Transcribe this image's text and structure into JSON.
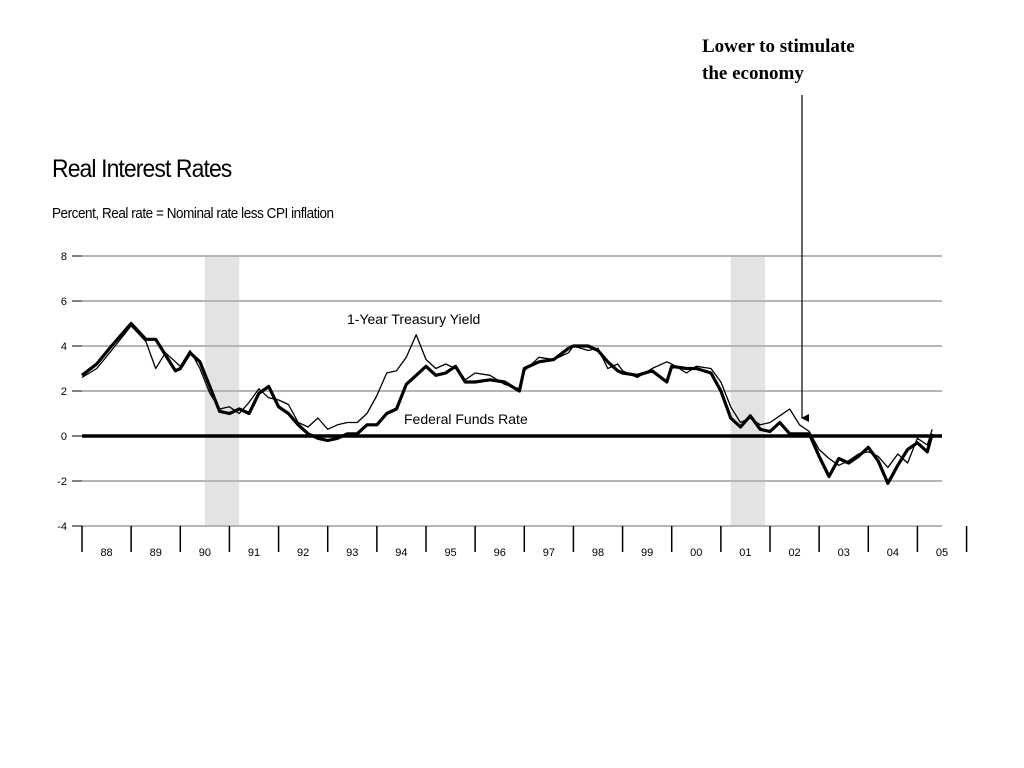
{
  "annotation": {
    "line1": "Lower to stimulate",
    "line2": "the economy"
  },
  "chart_data": {
    "type": "line",
    "title": "Real Interest Rates",
    "subtitle": "Percent, Real rate = Nominal rate less CPI inflation",
    "xlabel": "",
    "ylabel": "",
    "ylim": [
      -4,
      8
    ],
    "yticks": [
      "8",
      "6",
      "4",
      "2",
      "0",
      "-2",
      "-4"
    ],
    "xticks": [
      "88",
      "89",
      "90",
      "91",
      "92",
      "93",
      "94",
      "95",
      "96",
      "97",
      "98",
      "99",
      "00",
      "01",
      "02",
      "03",
      "04",
      "05"
    ],
    "grid": true,
    "recession_shading": [
      {
        "from": 1990.5,
        "to": 1991.2
      },
      {
        "from": 2001.2,
        "to": 2001.9
      }
    ],
    "series": [
      {
        "name": "1-Year Treasury Yield",
        "points": [
          [
            1988.0,
            2.6
          ],
          [
            1988.3,
            3.0
          ],
          [
            1988.6,
            3.8
          ],
          [
            1989.0,
            4.9
          ],
          [
            1989.3,
            4.2
          ],
          [
            1989.5,
            3.0
          ],
          [
            1989.7,
            3.7
          ],
          [
            1989.9,
            3.3
          ],
          [
            1990.0,
            3.1
          ],
          [
            1990.2,
            3.8
          ],
          [
            1990.4,
            3.0
          ],
          [
            1990.6,
            1.9
          ],
          [
            1990.8,
            1.2
          ],
          [
            1991.0,
            1.3
          ],
          [
            1991.2,
            1.0
          ],
          [
            1991.4,
            1.5
          ],
          [
            1991.6,
            2.1
          ],
          [
            1991.8,
            1.7
          ],
          [
            1992.0,
            1.6
          ],
          [
            1992.2,
            1.4
          ],
          [
            1992.4,
            0.6
          ],
          [
            1992.6,
            0.4
          ],
          [
            1992.8,
            0.8
          ],
          [
            1993.0,
            0.3
          ],
          [
            1993.2,
            0.5
          ],
          [
            1993.4,
            0.6
          ],
          [
            1993.6,
            0.6
          ],
          [
            1993.8,
            1.0
          ],
          [
            1994.0,
            1.8
          ],
          [
            1994.2,
            2.8
          ],
          [
            1994.4,
            2.9
          ],
          [
            1994.6,
            3.5
          ],
          [
            1994.8,
            4.5
          ],
          [
            1995.0,
            3.4
          ],
          [
            1995.2,
            3.0
          ],
          [
            1995.4,
            3.2
          ],
          [
            1995.6,
            3.0
          ],
          [
            1995.8,
            2.5
          ],
          [
            1996.0,
            2.8
          ],
          [
            1996.3,
            2.7
          ],
          [
            1996.6,
            2.3
          ],
          [
            1996.9,
            2.1
          ],
          [
            1997.0,
            2.9
          ],
          [
            1997.3,
            3.5
          ],
          [
            1997.6,
            3.4
          ],
          [
            1997.9,
            3.7
          ],
          [
            1998.0,
            4.0
          ],
          [
            1998.3,
            3.8
          ],
          [
            1998.5,
            3.9
          ],
          [
            1998.7,
            3.0
          ],
          [
            1998.9,
            3.2
          ],
          [
            1999.0,
            2.9
          ],
          [
            1999.3,
            2.6
          ],
          [
            1999.6,
            3.0
          ],
          [
            1999.9,
            3.3
          ],
          [
            2000.0,
            3.2
          ],
          [
            2000.3,
            2.8
          ],
          [
            2000.5,
            3.1
          ],
          [
            2000.8,
            3.0
          ],
          [
            2001.0,
            2.4
          ],
          [
            2001.2,
            1.3
          ],
          [
            2001.4,
            0.6
          ],
          [
            2001.6,
            0.8
          ],
          [
            2001.8,
            0.5
          ],
          [
            2002.0,
            0.6
          ],
          [
            2002.2,
            0.9
          ],
          [
            2002.4,
            1.2
          ],
          [
            2002.6,
            0.5
          ],
          [
            2002.8,
            0.2
          ],
          [
            2003.0,
            -0.6
          ],
          [
            2003.2,
            -1.0
          ],
          [
            2003.4,
            -1.3
          ],
          [
            2003.6,
            -1.1
          ],
          [
            2003.8,
            -0.8
          ],
          [
            2004.0,
            -0.7
          ],
          [
            2004.2,
            -0.9
          ],
          [
            2004.4,
            -1.4
          ],
          [
            2004.6,
            -0.8
          ],
          [
            2004.8,
            -1.2
          ],
          [
            2005.0,
            -0.1
          ],
          [
            2005.2,
            -0.4
          ],
          [
            2005.3,
            0.3
          ]
        ]
      },
      {
        "name": "Federal Funds Rate",
        "points": [
          [
            1988.0,
            2.7
          ],
          [
            1988.3,
            3.2
          ],
          [
            1988.6,
            4.0
          ],
          [
            1989.0,
            5.0
          ],
          [
            1989.3,
            4.3
          ],
          [
            1989.5,
            4.3
          ],
          [
            1989.7,
            3.6
          ],
          [
            1989.9,
            2.9
          ],
          [
            1990.0,
            3.0
          ],
          [
            1990.2,
            3.7
          ],
          [
            1990.4,
            3.3
          ],
          [
            1990.6,
            2.2
          ],
          [
            1990.8,
            1.1
          ],
          [
            1991.0,
            1.0
          ],
          [
            1991.2,
            1.2
          ],
          [
            1991.4,
            1.0
          ],
          [
            1991.6,
            1.9
          ],
          [
            1991.8,
            2.2
          ],
          [
            1992.0,
            1.3
          ],
          [
            1992.2,
            1.0
          ],
          [
            1992.4,
            0.5
          ],
          [
            1992.6,
            0.1
          ],
          [
            1992.8,
            -0.1
          ],
          [
            1993.0,
            -0.2
          ],
          [
            1993.2,
            -0.1
          ],
          [
            1993.4,
            0.1
          ],
          [
            1993.6,
            0.1
          ],
          [
            1993.8,
            0.5
          ],
          [
            1994.0,
            0.5
          ],
          [
            1994.2,
            1.0
          ],
          [
            1994.4,
            1.2
          ],
          [
            1994.6,
            2.3
          ],
          [
            1994.8,
            2.7
          ],
          [
            1995.0,
            3.1
          ],
          [
            1995.2,
            2.7
          ],
          [
            1995.4,
            2.8
          ],
          [
            1995.6,
            3.1
          ],
          [
            1995.8,
            2.4
          ],
          [
            1996.0,
            2.4
          ],
          [
            1996.3,
            2.5
          ],
          [
            1996.6,
            2.4
          ],
          [
            1996.9,
            2.0
          ],
          [
            1997.0,
            3.0
          ],
          [
            1997.3,
            3.3
          ],
          [
            1997.6,
            3.4
          ],
          [
            1997.9,
            3.9
          ],
          [
            1998.0,
            4.0
          ],
          [
            1998.3,
            4.0
          ],
          [
            1998.5,
            3.8
          ],
          [
            1998.7,
            3.3
          ],
          [
            1998.9,
            2.9
          ],
          [
            1999.0,
            2.8
          ],
          [
            1999.3,
            2.7
          ],
          [
            1999.6,
            2.9
          ],
          [
            1999.9,
            2.4
          ],
          [
            2000.0,
            3.1
          ],
          [
            2000.3,
            3.0
          ],
          [
            2000.5,
            3.0
          ],
          [
            2000.8,
            2.8
          ],
          [
            2001.0,
            2.0
          ],
          [
            2001.2,
            0.8
          ],
          [
            2001.4,
            0.4
          ],
          [
            2001.6,
            0.9
          ],
          [
            2001.8,
            0.3
          ],
          [
            2002.0,
            0.2
          ],
          [
            2002.2,
            0.6
          ],
          [
            2002.4,
            0.1
          ],
          [
            2002.6,
            0.1
          ],
          [
            2002.8,
            0.1
          ],
          [
            2003.0,
            -0.9
          ],
          [
            2003.2,
            -1.8
          ],
          [
            2003.4,
            -1.0
          ],
          [
            2003.6,
            -1.2
          ],
          [
            2003.8,
            -0.9
          ],
          [
            2004.0,
            -0.5
          ],
          [
            2004.2,
            -1.1
          ],
          [
            2004.4,
            -2.1
          ],
          [
            2004.6,
            -1.3
          ],
          [
            2004.8,
            -0.6
          ],
          [
            2005.0,
            -0.3
          ],
          [
            2005.2,
            -0.7
          ],
          [
            2005.3,
            0.1
          ]
        ]
      }
    ]
  }
}
